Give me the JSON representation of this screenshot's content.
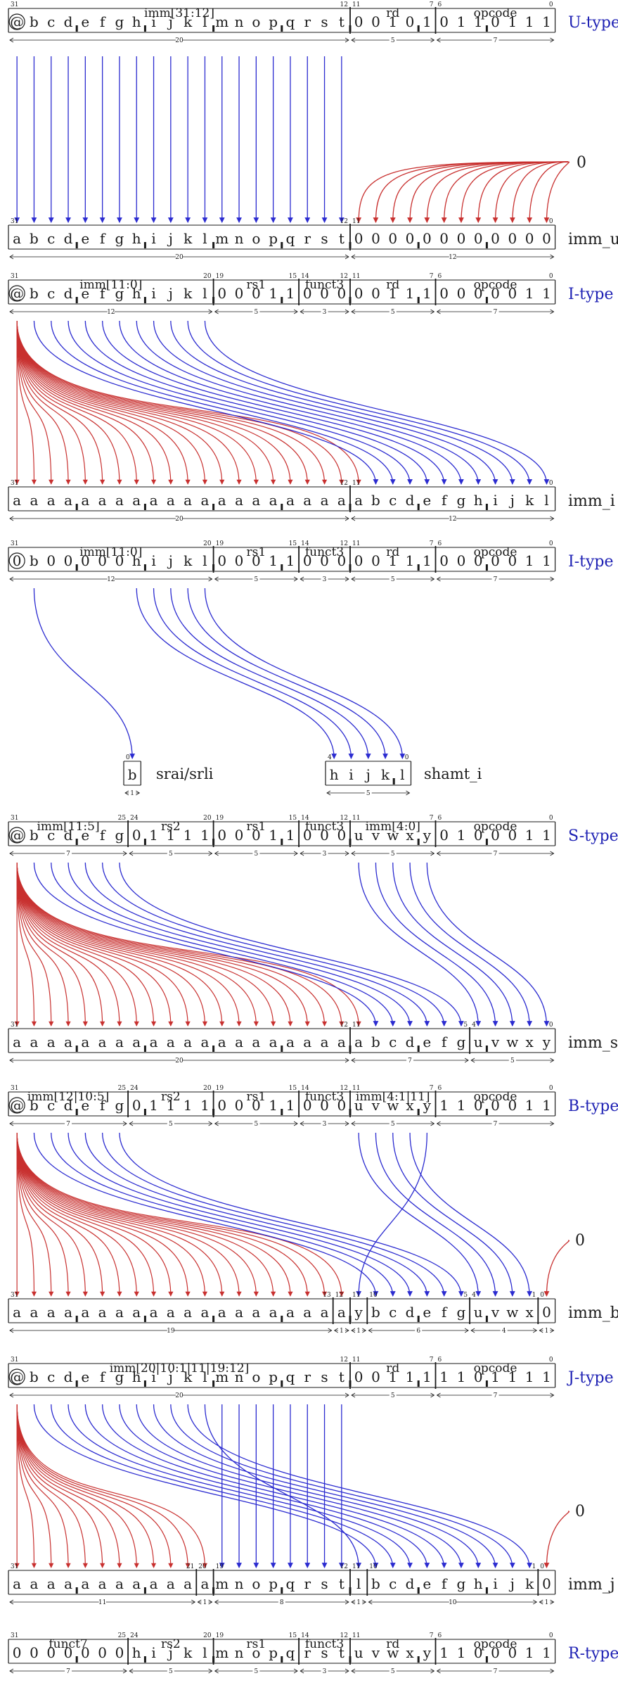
{
  "colors": {
    "ink": "#1a1a1a",
    "blue": "#2b2bd0",
    "red": "#c8302f",
    "label_blue": "#1f22b4"
  },
  "sections": [
    {
      "id": "u",
      "instr": {
        "type_label": "U-type",
        "bits": [
          "@",
          "b",
          "c",
          "d",
          "e",
          "f",
          "g",
          "h",
          "i",
          "j",
          "k",
          "l",
          "m",
          "n",
          "o",
          "p",
          "q",
          "r",
          "s",
          "t",
          "0",
          "0",
          "1",
          "0",
          "1",
          "0",
          "1",
          "1",
          "0",
          "1",
          "1",
          "1"
        ],
        "fields": [
          {
            "name": "imm[31:12]",
            "hi": 31,
            "lo": 12
          },
          {
            "name": "rd",
            "hi": 11,
            "lo": 7
          },
          {
            "name": "opcode",
            "hi": 6,
            "lo": 0
          }
        ]
      },
      "constant": "0",
      "imm": {
        "name": "imm_u",
        "bits": [
          "a",
          "b",
          "c",
          "d",
          "e",
          "f",
          "g",
          "h",
          "i",
          "j",
          "k",
          "l",
          "m",
          "n",
          "o",
          "p",
          "q",
          "r",
          "s",
          "t",
          "0",
          "0",
          "0",
          "0",
          "0",
          "0",
          "0",
          "0",
          "0",
          "0",
          "0",
          "0"
        ],
        "fields": [
          {
            "hi": 31,
            "lo": 12,
            "width": 20
          },
          {
            "hi": 11,
            "lo": 0,
            "width": 12
          }
        ]
      }
    },
    {
      "id": "i",
      "instr": {
        "type_label": "I-type",
        "bits": [
          "@",
          "b",
          "c",
          "d",
          "e",
          "f",
          "g",
          "h",
          "i",
          "j",
          "k",
          "l",
          "0",
          "0",
          "0",
          "1",
          "1",
          "0",
          "0",
          "0",
          "0",
          "0",
          "1",
          "1",
          "1",
          "0",
          "0",
          "0",
          "0",
          "0",
          "1",
          "1"
        ],
        "fields": [
          {
            "name": "imm[11:0]",
            "hi": 31,
            "lo": 20
          },
          {
            "name": "rs1",
            "hi": 19,
            "lo": 15
          },
          {
            "name": "funct3",
            "hi": 14,
            "lo": 12
          },
          {
            "name": "rd",
            "hi": 11,
            "lo": 7
          },
          {
            "name": "opcode",
            "hi": 6,
            "lo": 0
          }
        ]
      },
      "imm": {
        "name": "imm_i",
        "bits": [
          "a",
          "a",
          "a",
          "a",
          "a",
          "a",
          "a",
          "a",
          "a",
          "a",
          "a",
          "a",
          "a",
          "a",
          "a",
          "a",
          "a",
          "a",
          "a",
          "a",
          "a",
          "b",
          "c",
          "d",
          "e",
          "f",
          "g",
          "h",
          "i",
          "j",
          "k",
          "l"
        ],
        "fields": [
          {
            "hi": 31,
            "lo": 12,
            "width": 20
          },
          {
            "hi": 11,
            "lo": 0,
            "width": 12
          }
        ]
      }
    },
    {
      "id": "shift",
      "instr": {
        "type_label": "I-type",
        "bits": [
          "0",
          "b",
          "0",
          "0",
          "0",
          "0",
          "0",
          "h",
          "i",
          "j",
          "k",
          "l",
          "0",
          "0",
          "0",
          "1",
          "1",
          "0",
          "0",
          "0",
          "0",
          "0",
          "1",
          "1",
          "1",
          "0",
          "0",
          "0",
          "0",
          "0",
          "1",
          "1"
        ],
        "fields": [
          {
            "name": "imm[11:0]",
            "hi": 31,
            "lo": 20
          },
          {
            "name": "rs1",
            "hi": 19,
            "lo": 15
          },
          {
            "name": "funct3",
            "hi": 14,
            "lo": 12
          },
          {
            "name": "rd",
            "hi": 11,
            "lo": 7
          },
          {
            "name": "opcode",
            "hi": 6,
            "lo": 0
          }
        ]
      },
      "outputs": [
        {
          "name": "srai/srli",
          "bits": [
            "b"
          ],
          "hi": 0,
          "lo": 0,
          "width": 1
        },
        {
          "name": "shamt_i",
          "bits": [
            "h",
            "i",
            "j",
            "k",
            "l"
          ],
          "hi": 4,
          "lo": 0,
          "width": 5
        }
      ]
    },
    {
      "id": "s",
      "instr": {
        "type_label": "S-type",
        "bits": [
          "@",
          "b",
          "c",
          "d",
          "e",
          "f",
          "g",
          "0",
          "1",
          "1",
          "1",
          "1",
          "0",
          "0",
          "0",
          "1",
          "1",
          "0",
          "0",
          "0",
          "u",
          "v",
          "w",
          "x",
          "y",
          "0",
          "1",
          "0",
          "0",
          "0",
          "1",
          "1"
        ],
        "fields": [
          {
            "name": "imm[11:5]",
            "hi": 31,
            "lo": 25
          },
          {
            "name": "rs2",
            "hi": 24,
            "lo": 20
          },
          {
            "name": "rs1",
            "hi": 19,
            "lo": 15
          },
          {
            "name": "funct3",
            "hi": 14,
            "lo": 12
          },
          {
            "name": "imm[4:0]",
            "hi": 11,
            "lo": 7
          },
          {
            "name": "opcode",
            "hi": 6,
            "lo": 0
          }
        ]
      },
      "imm": {
        "name": "imm_s",
        "bits": [
          "a",
          "a",
          "a",
          "a",
          "a",
          "a",
          "a",
          "a",
          "a",
          "a",
          "a",
          "a",
          "a",
          "a",
          "a",
          "a",
          "a",
          "a",
          "a",
          "a",
          "a",
          "b",
          "c",
          "d",
          "e",
          "f",
          "g",
          "u",
          "v",
          "w",
          "x",
          "y"
        ],
        "fields": [
          {
            "hi": 31,
            "lo": 12,
            "width": 20
          },
          {
            "hi": 11,
            "lo": 5,
            "width": 7
          },
          {
            "hi": 4,
            "lo": 0,
            "width": 5
          }
        ]
      }
    },
    {
      "id": "b",
      "instr": {
        "type_label": "B-type",
        "bits": [
          "@",
          "b",
          "c",
          "d",
          "e",
          "f",
          "g",
          "0",
          "1",
          "1",
          "1",
          "1",
          "0",
          "0",
          "0",
          "1",
          "1",
          "0",
          "0",
          "0",
          "u",
          "v",
          "w",
          "x",
          "y",
          "1",
          "1",
          "0",
          "0",
          "0",
          "1",
          "1"
        ],
        "fields": [
          {
            "name": "imm[12|10:5]",
            "hi": 31,
            "lo": 25
          },
          {
            "name": "rs2",
            "hi": 24,
            "lo": 20
          },
          {
            "name": "rs1",
            "hi": 19,
            "lo": 15
          },
          {
            "name": "funct3",
            "hi": 14,
            "lo": 12
          },
          {
            "name": "imm[4:1|11]",
            "hi": 11,
            "lo": 7
          },
          {
            "name": "opcode",
            "hi": 6,
            "lo": 0
          }
        ]
      },
      "constant": "0",
      "imm": {
        "name": "imm_b",
        "bits": [
          "a",
          "a",
          "a",
          "a",
          "a",
          "a",
          "a",
          "a",
          "a",
          "a",
          "a",
          "a",
          "a",
          "a",
          "a",
          "a",
          "a",
          "a",
          "a",
          "a",
          "y",
          "b",
          "c",
          "d",
          "e",
          "f",
          "g",
          "u",
          "v",
          "w",
          "x",
          "0"
        ],
        "fields": [
          {
            "hi": 31,
            "lo": 13,
            "width": 19
          },
          {
            "hi": 12,
            "lo": 12,
            "width": 1
          },
          {
            "hi": 11,
            "lo": 11,
            "width": 1
          },
          {
            "hi": 10,
            "lo": 5,
            "width": 6
          },
          {
            "hi": 4,
            "lo": 1,
            "width": 4
          },
          {
            "hi": 0,
            "lo": 0,
            "width": 1
          }
        ]
      }
    },
    {
      "id": "j",
      "instr": {
        "type_label": "J-type",
        "bits": [
          "@",
          "b",
          "c",
          "d",
          "e",
          "f",
          "g",
          "h",
          "i",
          "j",
          "k",
          "l",
          "m",
          "n",
          "o",
          "p",
          "q",
          "r",
          "s",
          "t",
          "0",
          "0",
          "1",
          "1",
          "1",
          "1",
          "1",
          "0",
          "1",
          "1",
          "1",
          "1"
        ],
        "fields": [
          {
            "name": "imm[20|10:1|11|19:12]",
            "hi": 31,
            "lo": 12
          },
          {
            "name": "rd",
            "hi": 11,
            "lo": 7
          },
          {
            "name": "opcode",
            "hi": 6,
            "lo": 0
          }
        ]
      },
      "constant": "0",
      "imm": {
        "name": "imm_j",
        "bits": [
          "a",
          "a",
          "a",
          "a",
          "a",
          "a",
          "a",
          "a",
          "a",
          "a",
          "a",
          "a",
          "m",
          "n",
          "o",
          "p",
          "q",
          "r",
          "s",
          "t",
          "l",
          "b",
          "c",
          "d",
          "e",
          "f",
          "g",
          "h",
          "i",
          "j",
          "k",
          "0"
        ],
        "fields": [
          {
            "hi": 31,
            "lo": 21,
            "width": 11
          },
          {
            "hi": 20,
            "lo": 20,
            "width": 1
          },
          {
            "hi": 19,
            "lo": 12,
            "width": 8
          },
          {
            "hi": 11,
            "lo": 11,
            "width": 1
          },
          {
            "hi": 10,
            "lo": 1,
            "width": 10
          },
          {
            "hi": 0,
            "lo": 0,
            "width": 1
          }
        ]
      }
    },
    {
      "id": "r",
      "instr": {
        "type_label": "R-type",
        "bits": [
          "0",
          "0",
          "0",
          "0",
          "0",
          "0",
          "0",
          "h",
          "i",
          "j",
          "k",
          "l",
          "m",
          "n",
          "o",
          "p",
          "q",
          "r",
          "s",
          "t",
          "u",
          "v",
          "w",
          "x",
          "y",
          "1",
          "1",
          "0",
          "0",
          "0",
          "1",
          "1"
        ],
        "fields": [
          {
            "name": "funct7",
            "hi": 31,
            "lo": 25
          },
          {
            "name": "rs2",
            "hi": 24,
            "lo": 20
          },
          {
            "name": "rs1",
            "hi": 19,
            "lo": 15
          },
          {
            "name": "funct3",
            "hi": 14,
            "lo": 12
          },
          {
            "name": "rd",
            "hi": 11,
            "lo": 7
          },
          {
            "name": "opcode",
            "hi": 6,
            "lo": 0
          }
        ]
      }
    }
  ]
}
